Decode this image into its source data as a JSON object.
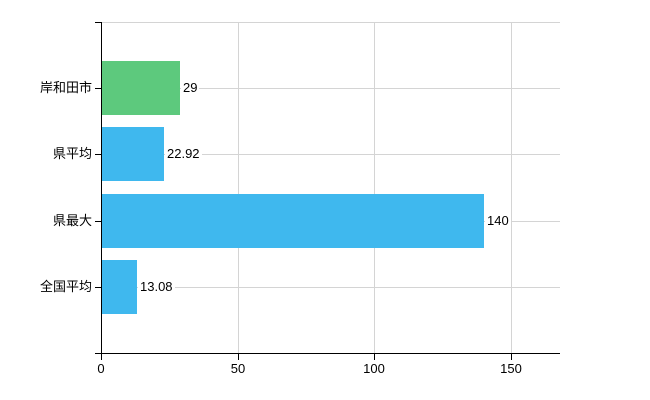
{
  "chart_data": {
    "type": "bar",
    "orientation": "horizontal",
    "title": "",
    "xlabel": "",
    "ylabel": "",
    "categories": [
      "岸和田市",
      "県平均",
      "県最大",
      "全国平均"
    ],
    "values": [
      29,
      22.92,
      140,
      13.08
    ],
    "value_labels": [
      "29",
      "22.92",
      "140",
      "13.08"
    ],
    "bar_colors": [
      "#5dc97d",
      "#3fb8ee",
      "#3fb8ee",
      "#3fb8ee"
    ],
    "xlim": [
      0,
      168
    ],
    "x_ticks": [
      0,
      50,
      100,
      150
    ],
    "x_tick_labels": [
      "0",
      "50",
      "100",
      "150"
    ],
    "grid": true,
    "legend_position": "none",
    "colors": {
      "bar_green": "#5dc97d",
      "bar_blue": "#3fb8ee",
      "grid": "#d4d4d4",
      "axis": "#000000",
      "text": "#000000",
      "label_background": "#ffffff",
      "background": "#ffffff"
    }
  }
}
